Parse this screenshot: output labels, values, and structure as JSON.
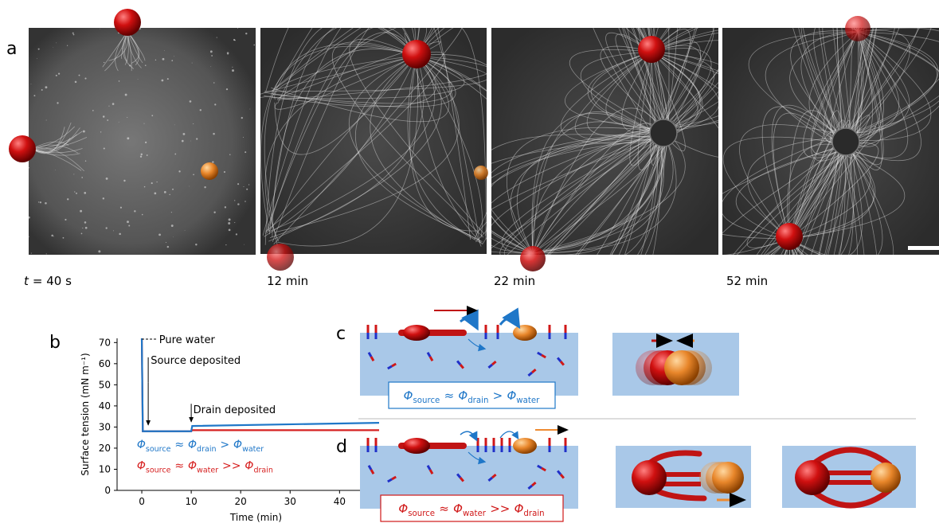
{
  "panel_a": {
    "label": "a",
    "time_labels": [
      {
        "symbol": "t",
        "text": "= 40 s"
      },
      "12 min",
      "22 min",
      "52 min"
    ]
  },
  "chart_data": {
    "type": "line",
    "panel_label": "b",
    "x_label": "Time (min)",
    "y_label": "Surface tension (mN m⁻¹)",
    "x": [
      0,
      0.2,
      10,
      10.2,
      48
    ],
    "series": [
      {
        "name": [
          {
            "symbol": "Φ",
            "sub": "source"
          },
          "≈",
          {
            "symbol": "Φ",
            "sub": "drain"
          },
          ">",
          {
            "symbol": "Φ",
            "sub": "water"
          }
        ],
        "color": "#1f77c8",
        "values": [
          72,
          28,
          28,
          30.5,
          32
        ]
      },
      {
        "name": [
          {
            "symbol": "Φ",
            "sub": "source"
          },
          "≈",
          {
            "symbol": "Φ",
            "sub": "water"
          },
          ">>",
          {
            "symbol": "Φ",
            "sub": "drain"
          }
        ],
        "color": "#d62020",
        "values": [
          72,
          28,
          28,
          28.5,
          28.5
        ]
      }
    ],
    "xlim": [
      -5,
      48
    ],
    "xticks": [
      0,
      10,
      20,
      30,
      40
    ],
    "ylim": [
      0,
      72
    ],
    "yticks": [
      0,
      10,
      20,
      30,
      40,
      50,
      60,
      70
    ],
    "annotations": [
      "Pure water",
      "Source deposited",
      "Drain deposited"
    ],
    "grid": false
  },
  "panel_c": {
    "label": "c",
    "formula": [
      {
        "symbol": "Φ",
        "sub": "source"
      },
      "≈",
      {
        "symbol": "Φ",
        "sub": "drain"
      },
      ">",
      {
        "symbol": "Φ",
        "sub": "water"
      }
    ]
  },
  "panel_d": {
    "label": "d",
    "formula": [
      {
        "symbol": "Φ",
        "sub": "source"
      },
      "≈",
      {
        "symbol": "Φ",
        "sub": "water"
      },
      ">>",
      {
        "symbol": "Φ",
        "sub": "drain"
      }
    ]
  }
}
